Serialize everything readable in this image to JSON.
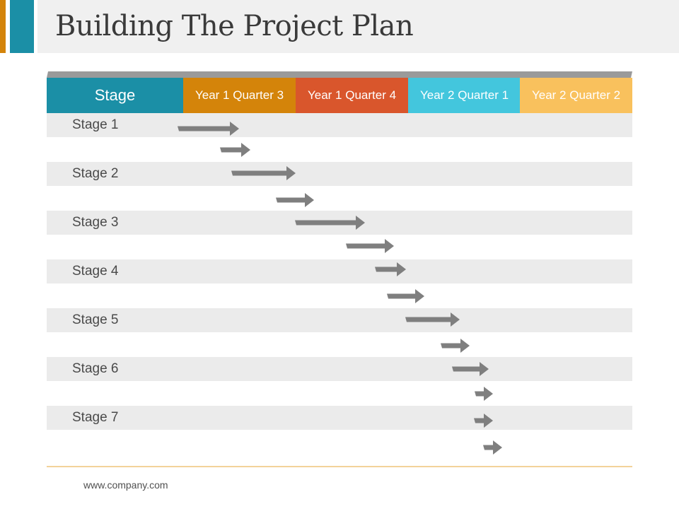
{
  "title": "Building The Project Plan",
  "header": {
    "stage_label": "Stage",
    "quarters": [
      {
        "label": "Year 1 Quarter 3",
        "color": "#d4840a"
      },
      {
        "label": "Year 1 Quarter 4",
        "color": "#d9562c"
      },
      {
        "label": "Year 2 Quarter 1",
        "color": "#43c6dd"
      },
      {
        "label": "Year 2 Quarter 2",
        "color": "#f9c15d"
      }
    ],
    "stage_color": "#1b8fa6",
    "band_color": "#9a9a9a"
  },
  "stages": [
    "Stage 1",
    "Stage 2",
    "Stage 3",
    "Stage 4",
    "Stage 5",
    "Stage 6",
    "Stage 7"
  ],
  "arrow_color": "#7f7f7f",
  "footer": "www.company.com"
}
